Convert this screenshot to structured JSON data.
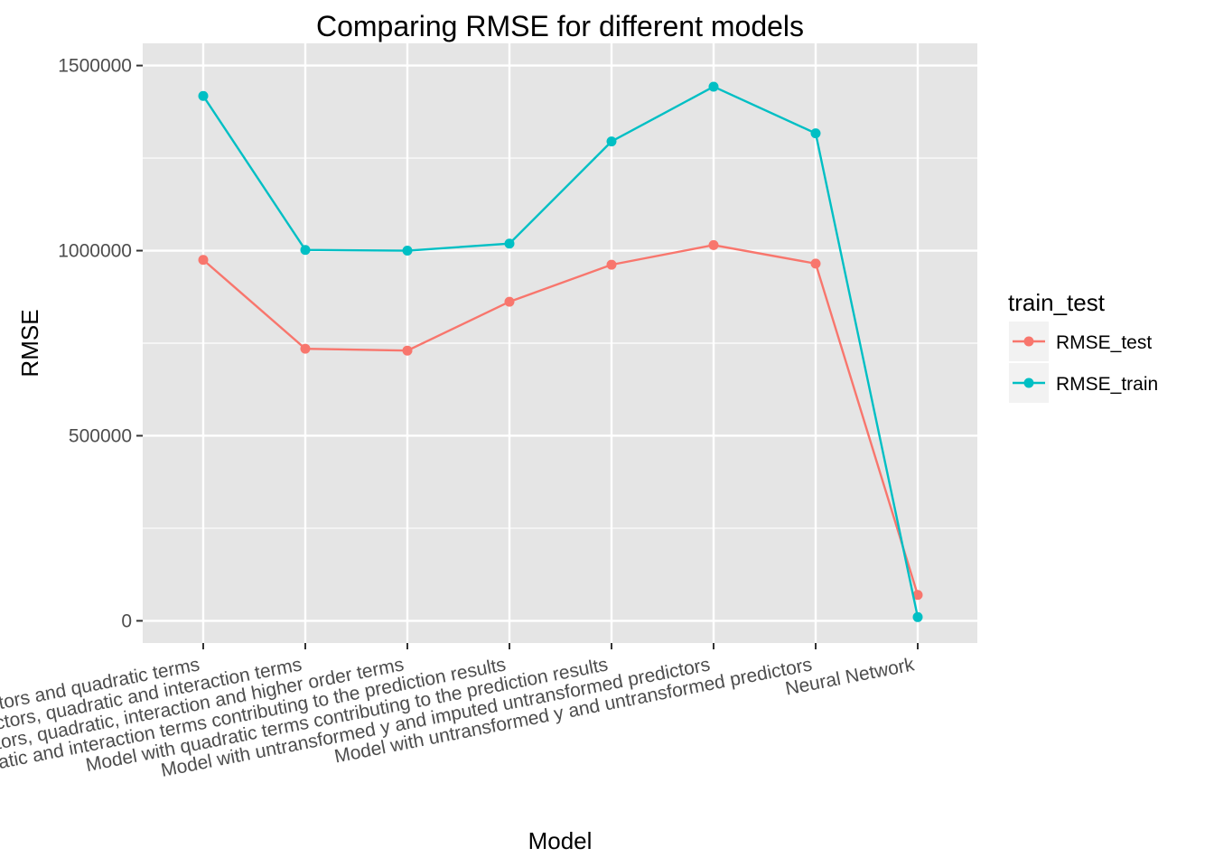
{
  "chart_data": {
    "type": "line",
    "title": "Comparing RMSE for different models",
    "xlabel": "Model",
    "ylabel": "RMSE",
    "categories": [
      "Model with untransformed predictors and quadratic terms",
      "Model with untransformed predictors, quadratic and interaction terms",
      "Model with untransformed predictors, quadratic, interaction and higher order terms",
      "Model with quadratic and interaction terms contributing to the prediction results",
      "Model with quadratic terms contributing to the prediction results",
      "Model with untransformed y and imputed untransformed predictors",
      "Model with untransformed y and untransformed predictors",
      "Neural Network"
    ],
    "series": [
      {
        "name": "RMSE_test",
        "color": "#F8766D",
        "values": [
          975000,
          735000,
          730000,
          862000,
          962000,
          1015000,
          965000,
          70000
        ]
      },
      {
        "name": "RMSE_train",
        "color": "#00BFC4",
        "values": [
          1418000,
          1002000,
          1000000,
          1019000,
          1295000,
          1443000,
          1317000,
          10000
        ]
      }
    ],
    "yticks": [
      0,
      500000,
      1000000,
      1500000
    ],
    "ytick_labels": [
      "0",
      "500000",
      "1000000",
      "1500000"
    ],
    "ylim": [
      -60000,
      1560000
    ],
    "legend": {
      "title": "train_test",
      "position": "right"
    },
    "grid": true,
    "panel_background": "#E5E5E5",
    "grid_color": "#FFFFFF"
  }
}
